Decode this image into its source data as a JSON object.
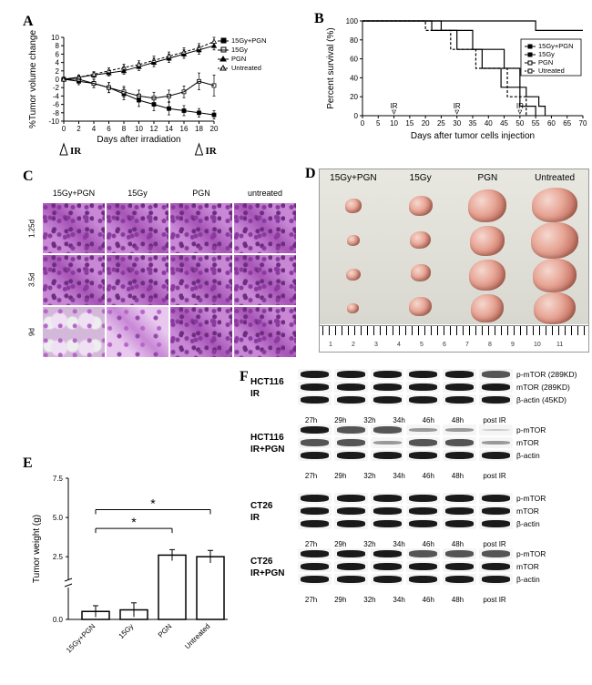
{
  "panelA": {
    "type": "line",
    "label": "A",
    "x_label": "Days after irradiation",
    "y_label": "%Tumor volume change",
    "xlim": [
      0,
      20
    ],
    "xtick_step": 2,
    "ylim": [
      -10,
      10
    ],
    "ytick_step": 2,
    "ir_markers": [
      0,
      18
    ],
    "ir_text": "IR",
    "series": [
      {
        "name": "15Gy+PGN",
        "marker": "square-filled",
        "color": "#000000",
        "x": [
          0,
          2,
          4,
          6,
          8,
          10,
          12,
          14,
          16,
          18,
          20
        ],
        "y": [
          0,
          -0.5,
          -1,
          -2,
          -3.5,
          -5,
          -6,
          -7,
          -7.5,
          -8,
          -8.5
        ],
        "err": [
          0.5,
          0.8,
          1,
          1.2,
          1.4,
          1.5,
          1.5,
          1.5,
          1.2,
          1,
          1
        ]
      },
      {
        "name": "15Gy",
        "marker": "square-open",
        "color": "#000000",
        "x": [
          0,
          2,
          4,
          6,
          8,
          10,
          12,
          14,
          16,
          18,
          20
        ],
        "y": [
          0,
          0,
          -1,
          -2,
          -3,
          -4,
          -4.5,
          -4,
          -3,
          -0.5,
          -1.5
        ],
        "err": [
          0.5,
          0.8,
          1,
          1.2,
          1.3,
          1.4,
          1.4,
          1.4,
          1.4,
          2,
          2.5
        ]
      },
      {
        "name": "PGN",
        "marker": "triangle-filled",
        "color": "#000000",
        "x": [
          0,
          2,
          4,
          6,
          8,
          10,
          12,
          14,
          16,
          18,
          20
        ],
        "y": [
          0,
          0.5,
          1,
          1.5,
          2,
          3,
          4,
          5,
          6,
          7,
          8
        ],
        "err": [
          0.3,
          0.5,
          0.6,
          0.7,
          0.8,
          0.9,
          1,
          1,
          1,
          1,
          1
        ]
      },
      {
        "name": "Untreated",
        "marker": "triangle-open",
        "color": "#000000",
        "dash": true,
        "x": [
          0,
          2,
          4,
          6,
          8,
          10,
          12,
          14,
          16,
          18,
          20
        ],
        "y": [
          0,
          0.5,
          1.2,
          2,
          2.8,
          3.5,
          4.5,
          5.5,
          6.5,
          7.5,
          9
        ],
        "err": [
          0.3,
          0.5,
          0.6,
          0.7,
          0.8,
          0.9,
          1,
          1,
          1,
          1,
          1
        ]
      }
    ]
  },
  "panelB": {
    "type": "survival",
    "label": "B",
    "x_label": "Days after tumor cells injection",
    "y_label": "Percent survival (%)",
    "xlim": [
      0,
      70
    ],
    "xtick_step": 5,
    "ylim": [
      0,
      100
    ],
    "ytick_step": 20,
    "ir_marks": [
      10,
      30,
      50
    ],
    "ir_text": "IR",
    "series": [
      {
        "name": "15Gy+PGN",
        "steps": [
          [
            0,
            100
          ],
          [
            55,
            100
          ],
          [
            55,
            90
          ],
          [
            70,
            90
          ]
        ]
      },
      {
        "name": "15Gy",
        "steps": [
          [
            0,
            100
          ],
          [
            25,
            100
          ],
          [
            25,
            90
          ],
          [
            35,
            90
          ],
          [
            35,
            70
          ],
          [
            45,
            70
          ],
          [
            45,
            50
          ],
          [
            50,
            50
          ],
          [
            50,
            30
          ],
          [
            52,
            30
          ],
          [
            52,
            20
          ],
          [
            56,
            20
          ],
          [
            56,
            10
          ],
          [
            58,
            10
          ],
          [
            58,
            0
          ]
        ]
      },
      {
        "name": "PGN",
        "steps": [
          [
            0,
            100
          ],
          [
            22,
            100
          ],
          [
            22,
            90
          ],
          [
            30,
            90
          ],
          [
            30,
            70
          ],
          [
            38,
            70
          ],
          [
            38,
            50
          ],
          [
            44,
            50
          ],
          [
            44,
            30
          ],
          [
            50,
            30
          ],
          [
            50,
            10
          ],
          [
            55,
            10
          ],
          [
            55,
            0
          ]
        ]
      },
      {
        "name": "Utreated",
        "dash": true,
        "steps": [
          [
            0,
            100
          ],
          [
            20,
            100
          ],
          [
            20,
            90
          ],
          [
            28,
            90
          ],
          [
            28,
            70
          ],
          [
            36,
            70
          ],
          [
            36,
            50
          ],
          [
            46,
            50
          ],
          [
            46,
            20
          ],
          [
            52,
            20
          ],
          [
            52,
            0
          ]
        ]
      }
    ]
  },
  "panelC": {
    "label": "C",
    "cols": [
      "15Gy+PGN",
      "15Gy",
      "PGN",
      "untreated"
    ],
    "rows": [
      "1.25d",
      "3.5d",
      "9d"
    ],
    "tile_variants": [
      [
        "",
        "",
        "",
        ""
      ],
      [
        "",
        "",
        "",
        ""
      ],
      [
        "mixed",
        "light",
        "",
        ""
      ]
    ]
  },
  "panelD": {
    "label": "D",
    "cols": [
      "15Gy+PGN",
      "15Gy",
      "PGN",
      "Untreated"
    ],
    "tumor_sizes": [
      [
        18,
        26,
        42,
        50
      ],
      [
        14,
        23,
        38,
        52
      ],
      [
        16,
        22,
        40,
        48
      ],
      [
        13,
        25,
        36,
        46
      ]
    ],
    "ruler_max": 11
  },
  "panelE": {
    "type": "bar",
    "label": "E",
    "x_label": "",
    "y_label": "Tumor weight (g)",
    "ylim": [
      0,
      7.5
    ],
    "ytick_step": 2.5,
    "break_at": 1.0,
    "categories": [
      "15Gy+PGN",
      "15Gy",
      "PGN",
      "Untreated"
    ],
    "values": [
      0.25,
      0.3,
      2.6,
      2.5
    ],
    "err": [
      0.18,
      0.22,
      0.35,
      0.4
    ],
    "bar_color": "#ffffff",
    "bar_border": "#000000",
    "sig_bars": [
      {
        "from": 0,
        "to": 3,
        "y": 5.5,
        "label": "*"
      },
      {
        "from": 0,
        "to": 2,
        "y": 4.3,
        "label": "*"
      }
    ]
  },
  "panelF": {
    "label": "F",
    "timepoints": [
      "27h",
      "29h",
      "32h",
      "34h",
      "46h",
      "48h"
    ],
    "time_suffix": "post IR",
    "sets": [
      {
        "name_lines": [
          "HCT116",
          "IR"
        ],
        "rows": [
          {
            "label": "p-mTOR (289KD)",
            "bands": [
              "strong",
              "strong",
              "strong",
              "strong",
              "strong",
              "med"
            ]
          },
          {
            "label": "mTOR (289KD)",
            "bands": [
              "strong",
              "strong",
              "strong",
              "strong",
              "strong",
              "strong"
            ]
          },
          {
            "label": "β-actin (45KD)",
            "bands": [
              "strong",
              "strong",
              "strong",
              "strong",
              "strong",
              "strong"
            ]
          }
        ]
      },
      {
        "name_lines": [
          "HCT116",
          "IR+PGN"
        ],
        "rows": [
          {
            "label": "p-mTOR",
            "bands": [
              "strong",
              "med",
              "med",
              "weak",
              "weak",
              "vweak"
            ]
          },
          {
            "label": "mTOR",
            "bands": [
              "med",
              "med",
              "weak",
              "med",
              "med",
              "weak"
            ]
          },
          {
            "label": "β-actin",
            "bands": [
              "strong",
              "s",
              "strong",
              "strong",
              "strong",
              "strong"
            ],
            "_fix": [
              "strong",
              "strong",
              "strong",
              "strong",
              "strong",
              "strong"
            ]
          }
        ]
      },
      {
        "name_lines": [
          "CT26",
          "IR"
        ],
        "rows": [
          {
            "label": "p-mTOR",
            "bands": [
              "strong",
              "strong",
              "strong",
              "strong",
              "strong",
              "strong"
            ]
          },
          {
            "label": "mTOR",
            "bands": [
              "strong",
              "strong",
              "strong",
              "strong",
              "strong",
              "strong"
            ]
          },
          {
            "label": "β-actin",
            "bands": [
              "strong",
              "strong",
              "strong",
              "strong",
              "strong",
              "strong"
            ]
          }
        ]
      },
      {
        "name_lines": [
          "CT26",
          "IR+PGN"
        ],
        "rows": [
          {
            "label": "p-mTOR",
            "bands": [
              "strong",
              "strong",
              "strong",
              "med",
              "med",
              "med"
            ]
          },
          {
            "label": "mTOR",
            "bands": [
              "strong",
              "strong",
              "strong",
              "strong",
              "strong",
              "strong"
            ]
          },
          {
            "label": "β-actin",
            "bands": [
              "strong",
              "strong",
              "strong",
              "strong",
              "strong",
              "strong"
            ]
          }
        ]
      }
    ]
  }
}
